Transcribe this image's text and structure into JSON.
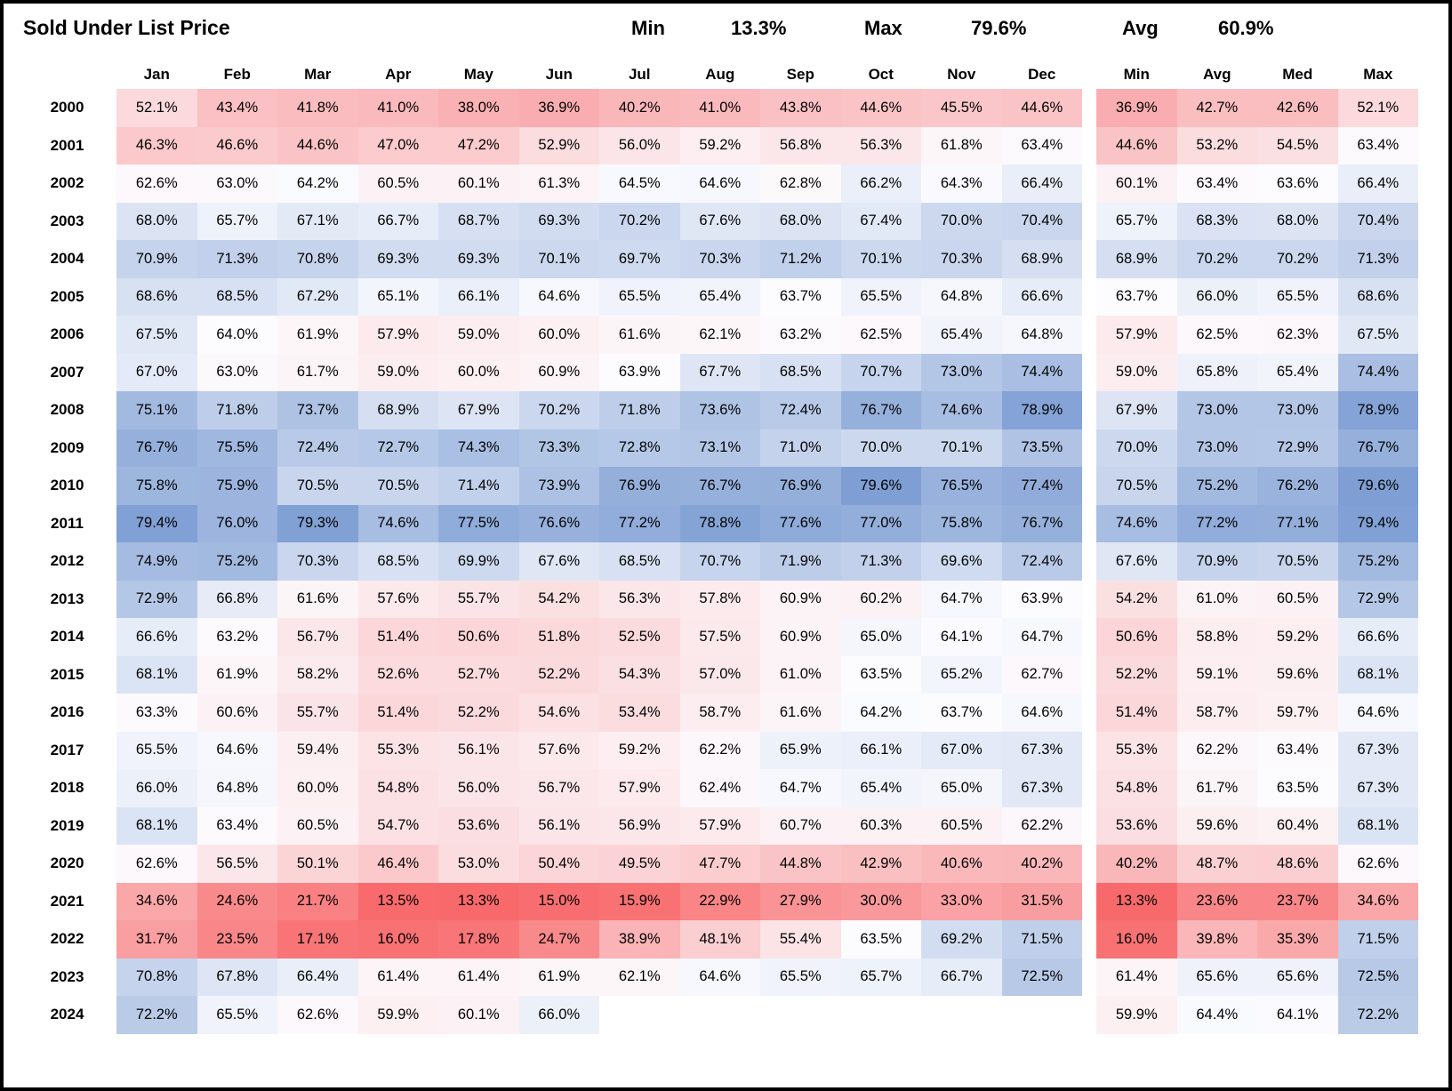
{
  "header": {
    "title": "Sold Under List Price",
    "stats": [
      {
        "label": "Min",
        "value": "13.3%"
      },
      {
        "label": "Max",
        "value": "79.6%"
      },
      {
        "label": "Avg",
        "value": "60.9%"
      }
    ]
  },
  "chart_data": {
    "type": "heatmap",
    "title": "Sold Under List Price",
    "columns": [
      "Jan",
      "Feb",
      "Mar",
      "Apr",
      "May",
      "Jun",
      "Jul",
      "Aug",
      "Sep",
      "Oct",
      "Nov",
      "Dec"
    ],
    "summary_columns": [
      "Min",
      "Avg",
      "Med",
      "Max"
    ],
    "overall": {
      "min": 13.3,
      "max": 79.6,
      "avg": 60.9
    },
    "color_scale": {
      "low_color": "#F8696B",
      "mid_color": "#FCFCFF",
      "high_color": "#7F9FD4",
      "domain_min": 13.3,
      "domain_mid": 64.0,
      "domain_max": 79.6
    },
    "value_suffix": "%",
    "rows": [
      {
        "year": "2000",
        "values": [
          52.1,
          43.4,
          41.8,
          41.0,
          38.0,
          36.9,
          40.2,
          41.0,
          43.8,
          44.6,
          45.5,
          44.6
        ],
        "summary": [
          36.9,
          42.7,
          42.6,
          52.1
        ]
      },
      {
        "year": "2001",
        "values": [
          46.3,
          46.6,
          44.6,
          47.0,
          47.2,
          52.9,
          56.0,
          59.2,
          56.8,
          56.3,
          61.8,
          63.4
        ],
        "summary": [
          44.6,
          53.2,
          54.5,
          63.4
        ]
      },
      {
        "year": "2002",
        "values": [
          62.6,
          63.0,
          64.2,
          60.5,
          60.1,
          61.3,
          64.5,
          64.6,
          62.8,
          66.2,
          64.3,
          66.4
        ],
        "summary": [
          60.1,
          63.4,
          63.6,
          66.4
        ]
      },
      {
        "year": "2003",
        "values": [
          68.0,
          65.7,
          67.1,
          66.7,
          68.7,
          69.3,
          70.2,
          67.6,
          68.0,
          67.4,
          70.0,
          70.4
        ],
        "summary": [
          65.7,
          68.3,
          68.0,
          70.4
        ]
      },
      {
        "year": "2004",
        "values": [
          70.9,
          71.3,
          70.8,
          69.3,
          69.3,
          70.1,
          69.7,
          70.3,
          71.2,
          70.1,
          70.3,
          68.9
        ],
        "summary": [
          68.9,
          70.2,
          70.2,
          71.3
        ]
      },
      {
        "year": "2005",
        "values": [
          68.6,
          68.5,
          67.2,
          65.1,
          66.1,
          64.6,
          65.5,
          65.4,
          63.7,
          65.5,
          64.8,
          66.6
        ],
        "summary": [
          63.7,
          66.0,
          65.5,
          68.6
        ]
      },
      {
        "year": "2006",
        "values": [
          67.5,
          64.0,
          61.9,
          57.9,
          59.0,
          60.0,
          61.6,
          62.1,
          63.2,
          62.5,
          65.4,
          64.8
        ],
        "summary": [
          57.9,
          62.5,
          62.3,
          67.5
        ]
      },
      {
        "year": "2007",
        "values": [
          67.0,
          63.0,
          61.7,
          59.0,
          60.0,
          60.9,
          63.9,
          67.7,
          68.5,
          70.7,
          73.0,
          74.4
        ],
        "summary": [
          59.0,
          65.8,
          65.4,
          74.4
        ]
      },
      {
        "year": "2008",
        "values": [
          75.1,
          71.8,
          73.7,
          68.9,
          67.9,
          70.2,
          71.8,
          73.6,
          72.4,
          76.7,
          74.6,
          78.9
        ],
        "summary": [
          67.9,
          73.0,
          73.0,
          78.9
        ]
      },
      {
        "year": "2009",
        "values": [
          76.7,
          75.5,
          72.4,
          72.7,
          74.3,
          73.3,
          72.8,
          73.1,
          71.0,
          70.0,
          70.1,
          73.5
        ],
        "summary": [
          70.0,
          73.0,
          72.9,
          76.7
        ]
      },
      {
        "year": "2010",
        "values": [
          75.8,
          75.9,
          70.5,
          70.5,
          71.4,
          73.9,
          76.9,
          76.7,
          76.9,
          79.6,
          76.5,
          77.4
        ],
        "summary": [
          70.5,
          75.2,
          76.2,
          79.6
        ]
      },
      {
        "year": "2011",
        "values": [
          79.4,
          76.0,
          79.3,
          74.6,
          77.5,
          76.6,
          77.2,
          78.8,
          77.6,
          77.0,
          75.8,
          76.7
        ],
        "summary": [
          74.6,
          77.2,
          77.1,
          79.4
        ]
      },
      {
        "year": "2012",
        "values": [
          74.9,
          75.2,
          70.3,
          68.5,
          69.9,
          67.6,
          68.5,
          70.7,
          71.9,
          71.3,
          69.6,
          72.4
        ],
        "summary": [
          67.6,
          70.9,
          70.5,
          75.2
        ]
      },
      {
        "year": "2013",
        "values": [
          72.9,
          66.8,
          61.6,
          57.6,
          55.7,
          54.2,
          56.3,
          57.8,
          60.9,
          60.2,
          64.7,
          63.9
        ],
        "summary": [
          54.2,
          61.0,
          60.5,
          72.9
        ]
      },
      {
        "year": "2014",
        "values": [
          66.6,
          63.2,
          56.7,
          51.4,
          50.6,
          51.8,
          52.5,
          57.5,
          60.9,
          65.0,
          64.1,
          64.7
        ],
        "summary": [
          50.6,
          58.8,
          59.2,
          66.6
        ]
      },
      {
        "year": "2015",
        "values": [
          68.1,
          61.9,
          58.2,
          52.6,
          52.7,
          52.2,
          54.3,
          57.0,
          61.0,
          63.5,
          65.2,
          62.7
        ],
        "summary": [
          52.2,
          59.1,
          59.6,
          68.1
        ]
      },
      {
        "year": "2016",
        "values": [
          63.3,
          60.6,
          55.7,
          51.4,
          52.2,
          54.6,
          53.4,
          58.7,
          61.6,
          64.2,
          63.7,
          64.6
        ],
        "summary": [
          51.4,
          58.7,
          59.7,
          64.6
        ]
      },
      {
        "year": "2017",
        "values": [
          65.5,
          64.6,
          59.4,
          55.3,
          56.1,
          57.6,
          59.2,
          62.2,
          65.9,
          66.1,
          67.0,
          67.3
        ],
        "summary": [
          55.3,
          62.2,
          63.4,
          67.3
        ]
      },
      {
        "year": "2018",
        "values": [
          66.0,
          64.8,
          60.0,
          54.8,
          56.0,
          56.7,
          57.9,
          62.4,
          64.7,
          65.4,
          65.0,
          67.3
        ],
        "summary": [
          54.8,
          61.7,
          63.5,
          67.3
        ]
      },
      {
        "year": "2019",
        "values": [
          68.1,
          63.4,
          60.5,
          54.7,
          53.6,
          56.1,
          56.9,
          57.9,
          60.7,
          60.3,
          60.5,
          62.2
        ],
        "summary": [
          53.6,
          59.6,
          60.4,
          68.1
        ]
      },
      {
        "year": "2020",
        "values": [
          62.6,
          56.5,
          50.1,
          46.4,
          53.0,
          50.4,
          49.5,
          47.7,
          44.8,
          42.9,
          40.6,
          40.2
        ],
        "summary": [
          40.2,
          48.7,
          48.6,
          62.6
        ]
      },
      {
        "year": "2021",
        "values": [
          34.6,
          24.6,
          21.7,
          13.5,
          13.3,
          15.0,
          15.9,
          22.9,
          27.9,
          30.0,
          33.0,
          31.5
        ],
        "summary": [
          13.3,
          23.6,
          23.7,
          34.6
        ]
      },
      {
        "year": "2022",
        "values": [
          31.7,
          23.5,
          17.1,
          16.0,
          17.8,
          24.7,
          38.9,
          48.1,
          55.4,
          63.5,
          69.2,
          71.5
        ],
        "summary": [
          16.0,
          39.8,
          35.3,
          71.5
        ]
      },
      {
        "year": "2023",
        "values": [
          70.8,
          67.8,
          66.4,
          61.4,
          61.4,
          61.9,
          62.1,
          64.6,
          65.5,
          65.7,
          66.7,
          72.5
        ],
        "summary": [
          61.4,
          65.6,
          65.6,
          72.5
        ]
      },
      {
        "year": "2024",
        "values": [
          72.2,
          65.5,
          62.6,
          59.9,
          60.1,
          66.0,
          null,
          null,
          null,
          null,
          null,
          null
        ],
        "summary": [
          59.9,
          64.4,
          64.1,
          72.2
        ]
      }
    ]
  }
}
